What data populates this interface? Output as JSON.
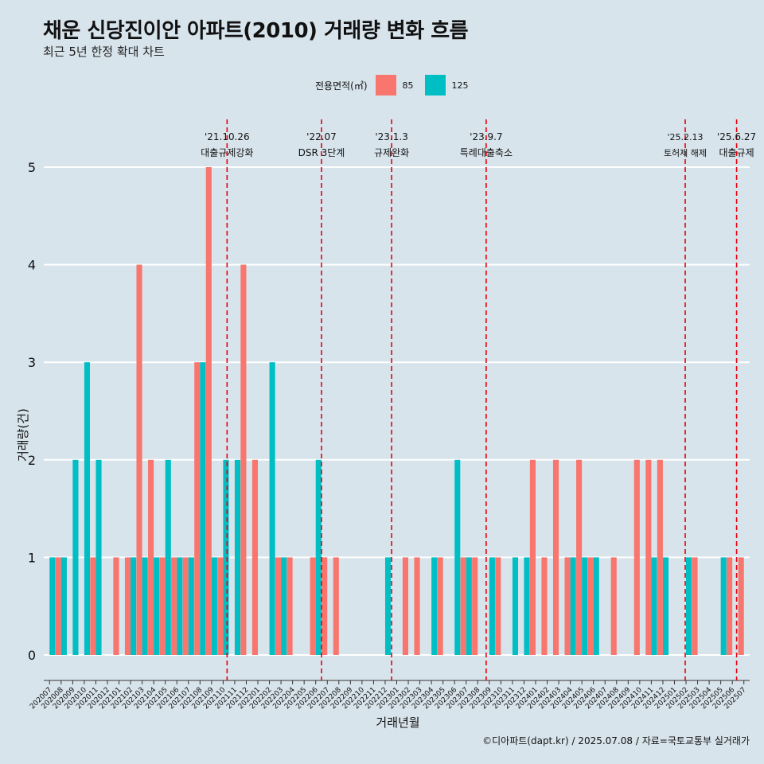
{
  "title": "채운 신당진이안 아파트(2010) 거래량 변화 흐름",
  "subtitle": "최근 5년 한정 확대 차트",
  "legend": {
    "title": "전용면적(㎡)",
    "items": [
      {
        "name": "85",
        "color": "#f8766d"
      },
      {
        "name": "125",
        "color": "#00bfc4"
      }
    ]
  },
  "caption": "©디아파트(dapt.kr) / 2025.07.08 / 자료=국토교통부 실거래가",
  "chart_data": {
    "type": "bar",
    "xlabel": "거래년월",
    "ylabel": "거래량(건)",
    "ylim": [
      0,
      5
    ],
    "yticks": [
      0,
      1,
      2,
      3,
      4,
      5
    ],
    "grid": true,
    "categories": [
      "202007",
      "202008",
      "202009",
      "202010",
      "202011",
      "202012",
      "202101",
      "202102",
      "202103",
      "202104",
      "202105",
      "202106",
      "202107",
      "202108",
      "202109",
      "202110",
      "202111",
      "202112",
      "202201",
      "202202",
      "202203",
      "202204",
      "202205",
      "202206",
      "202207",
      "202208",
      "202209",
      "202210",
      "202211",
      "202212",
      "202301",
      "202302",
      "202303",
      "202304",
      "202305",
      "202306",
      "202307",
      "202308",
      "202309",
      "202310",
      "202311",
      "202312",
      "202401",
      "202402",
      "202403",
      "202404",
      "202405",
      "202406",
      "202407",
      "202408",
      "202409",
      "202410",
      "202411",
      "202412",
      "202501",
      "202502",
      "202503",
      "202504",
      "202505",
      "202506",
      "202507"
    ],
    "series": [
      {
        "name": "85",
        "color": "#f8766d",
        "values": [
          0,
          1,
          0,
          0,
          1,
          0,
          1,
          1,
          4,
          2,
          1,
          1,
          1,
          3,
          5,
          1,
          0,
          4,
          2,
          0,
          1,
          1,
          0,
          1,
          1,
          1,
          0,
          0,
          0,
          0,
          0,
          1,
          1,
          0,
          1,
          0,
          1,
          1,
          0,
          1,
          0,
          0,
          2,
          1,
          2,
          1,
          2,
          1,
          0,
          1,
          0,
          2,
          2,
          2,
          0,
          0,
          1,
          0,
          0,
          1,
          1
        ]
      },
      {
        "name": "125",
        "color": "#00bfc4",
        "values": [
          1,
          1,
          2,
          3,
          2,
          0,
          0,
          1,
          1,
          1,
          2,
          1,
          1,
          3,
          1,
          2,
          2,
          0,
          0,
          3,
          1,
          0,
          0,
          2,
          0,
          0,
          0,
          0,
          0,
          1,
          0,
          0,
          0,
          1,
          0,
          2,
          1,
          0,
          1,
          0,
          1,
          1,
          0,
          0,
          0,
          1,
          1,
          1,
          0,
          0,
          0,
          0,
          1,
          1,
          0,
          1,
          0,
          0,
          1,
          0,
          0
        ]
      }
    ],
    "annotations": [
      {
        "date": "'21.10.26",
        "label": "대출규제강화",
        "month": "202110",
        "frac": 0.84
      },
      {
        "date": "'22.07",
        "label": "DSR 3단계",
        "month": "202207",
        "frac": 0.0
      },
      {
        "date": "'23.1.3",
        "label": "규제완화",
        "month": "202301",
        "frac": 0.06
      },
      {
        "date": "'23.9.7",
        "label": "특례대출축소",
        "month": "202309",
        "frac": 0.23
      },
      {
        "date": "'25.2.13",
        "label": "토허제 해제",
        "month": "202502",
        "frac": 0.43
      },
      {
        "date": "'25.6.27",
        "label": "대출규제",
        "month": "202506",
        "frac": 0.87
      }
    ]
  }
}
